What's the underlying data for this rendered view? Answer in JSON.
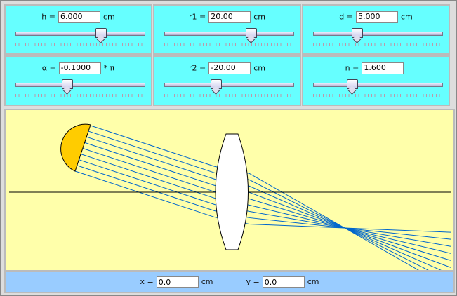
{
  "controls": [
    {
      "label": "h =",
      "value": "6.000",
      "unit": "cm",
      "slider": 0.66
    },
    {
      "label": "r1 =",
      "value": "20.00",
      "unit": "cm",
      "slider": 0.67
    },
    {
      "label": "d =",
      "value": "5.000",
      "unit": "cm",
      "slider": 0.34
    },
    {
      "label": "α =",
      "value": "-0.1000",
      "unit": "* π",
      "slider": 0.4
    },
    {
      "label": "r2 =",
      "value": "-20.00",
      "unit": "cm",
      "slider": 0.4
    },
    {
      "label": "n =",
      "value": "1.600",
      "unit": "",
      "slider": 0.3
    }
  ],
  "coords": {
    "x_label": "x =",
    "x_value": "0.0",
    "x_unit": "cm",
    "y_label": "y =",
    "y_value": "0.0",
    "y_unit": "cm"
  },
  "colors": {
    "panel": "#66ffff",
    "scene": "#ffffaa",
    "lamp": "#ffcc00",
    "ray": "#0066cc",
    "lens": "#ffffff",
    "bar": "#99ccff"
  }
}
